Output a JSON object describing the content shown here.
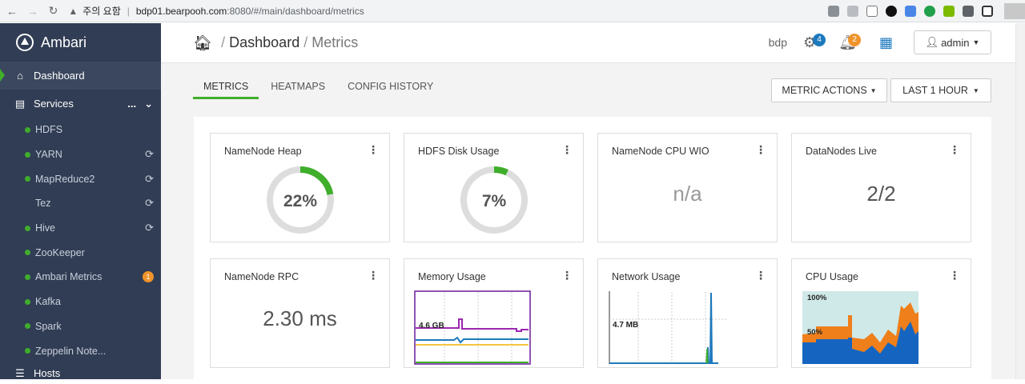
{
  "browser": {
    "back_icon": "back-arrow-icon",
    "warning_label": "주의 요함",
    "host": "bdp01.bearpooh.com",
    "path": ":8080/#/main/dashboard/metrics"
  },
  "sidebar": {
    "brand": "Ambari",
    "dashboard_label": "Dashboard",
    "services_label": "Services",
    "services_more": "...",
    "services": [
      {
        "name": "HDFS",
        "status": "green",
        "refresh": false
      },
      {
        "name": "YARN",
        "status": "green",
        "refresh": true
      },
      {
        "name": "MapReduce2",
        "status": "green",
        "refresh": true
      },
      {
        "name": "Tez",
        "status": "none",
        "refresh": true
      },
      {
        "name": "Hive",
        "status": "green",
        "refresh": true
      },
      {
        "name": "ZooKeeper",
        "status": "green",
        "refresh": false
      },
      {
        "name": "Ambari Metrics",
        "status": "green",
        "refresh": false,
        "badge": "1"
      },
      {
        "name": "Kafka",
        "status": "green",
        "refresh": false
      },
      {
        "name": "Spark",
        "status": "green",
        "refresh": false
      },
      {
        "name": "Zeppelin Note...",
        "status": "green",
        "refresh": false
      }
    ],
    "hosts_label": "Hosts"
  },
  "header": {
    "crumb_dashboard": "Dashboard",
    "crumb_sep": "/",
    "crumb_current": "Metrics",
    "cluster": "bdp",
    "ops_count": "4",
    "alerts_count": "2",
    "user": "admin"
  },
  "tabs": [
    {
      "label": "METRICS",
      "active": true
    },
    {
      "label": "HEATMAPS",
      "active": false
    },
    {
      "label": "CONFIG HISTORY",
      "active": false
    }
  ],
  "actions": {
    "metric_actions": "METRIC ACTIONS",
    "time_range": "LAST 1 HOUR"
  },
  "widgets": {
    "namenode_heap": {
      "title": "NameNode Heap",
      "value": "22%",
      "fraction": 0.22
    },
    "hdfs_disk": {
      "title": "HDFS Disk Usage",
      "value": "7%",
      "fraction": 0.07
    },
    "namenode_cpu": {
      "title": "NameNode CPU WIO",
      "value": "n/a"
    },
    "datanodes_live": {
      "title": "DataNodes Live",
      "value": "2/2"
    },
    "namenode_rpc": {
      "title": "NameNode RPC",
      "value": "2.30 ms"
    },
    "memory_usage": {
      "title": "Memory Usage",
      "label": "4.6 GB"
    },
    "network_usage": {
      "title": "Network Usage",
      "label": "4.7 MB"
    },
    "cpu_usage": {
      "title": "CPU Usage",
      "label_top": "100%",
      "label_mid": "50%"
    }
  },
  "colors": {
    "accent_green": "#3fae2a",
    "sidebar_bg": "#313d54",
    "ops_badge": "#1d79bd",
    "alert_badge": "#f0932b"
  }
}
